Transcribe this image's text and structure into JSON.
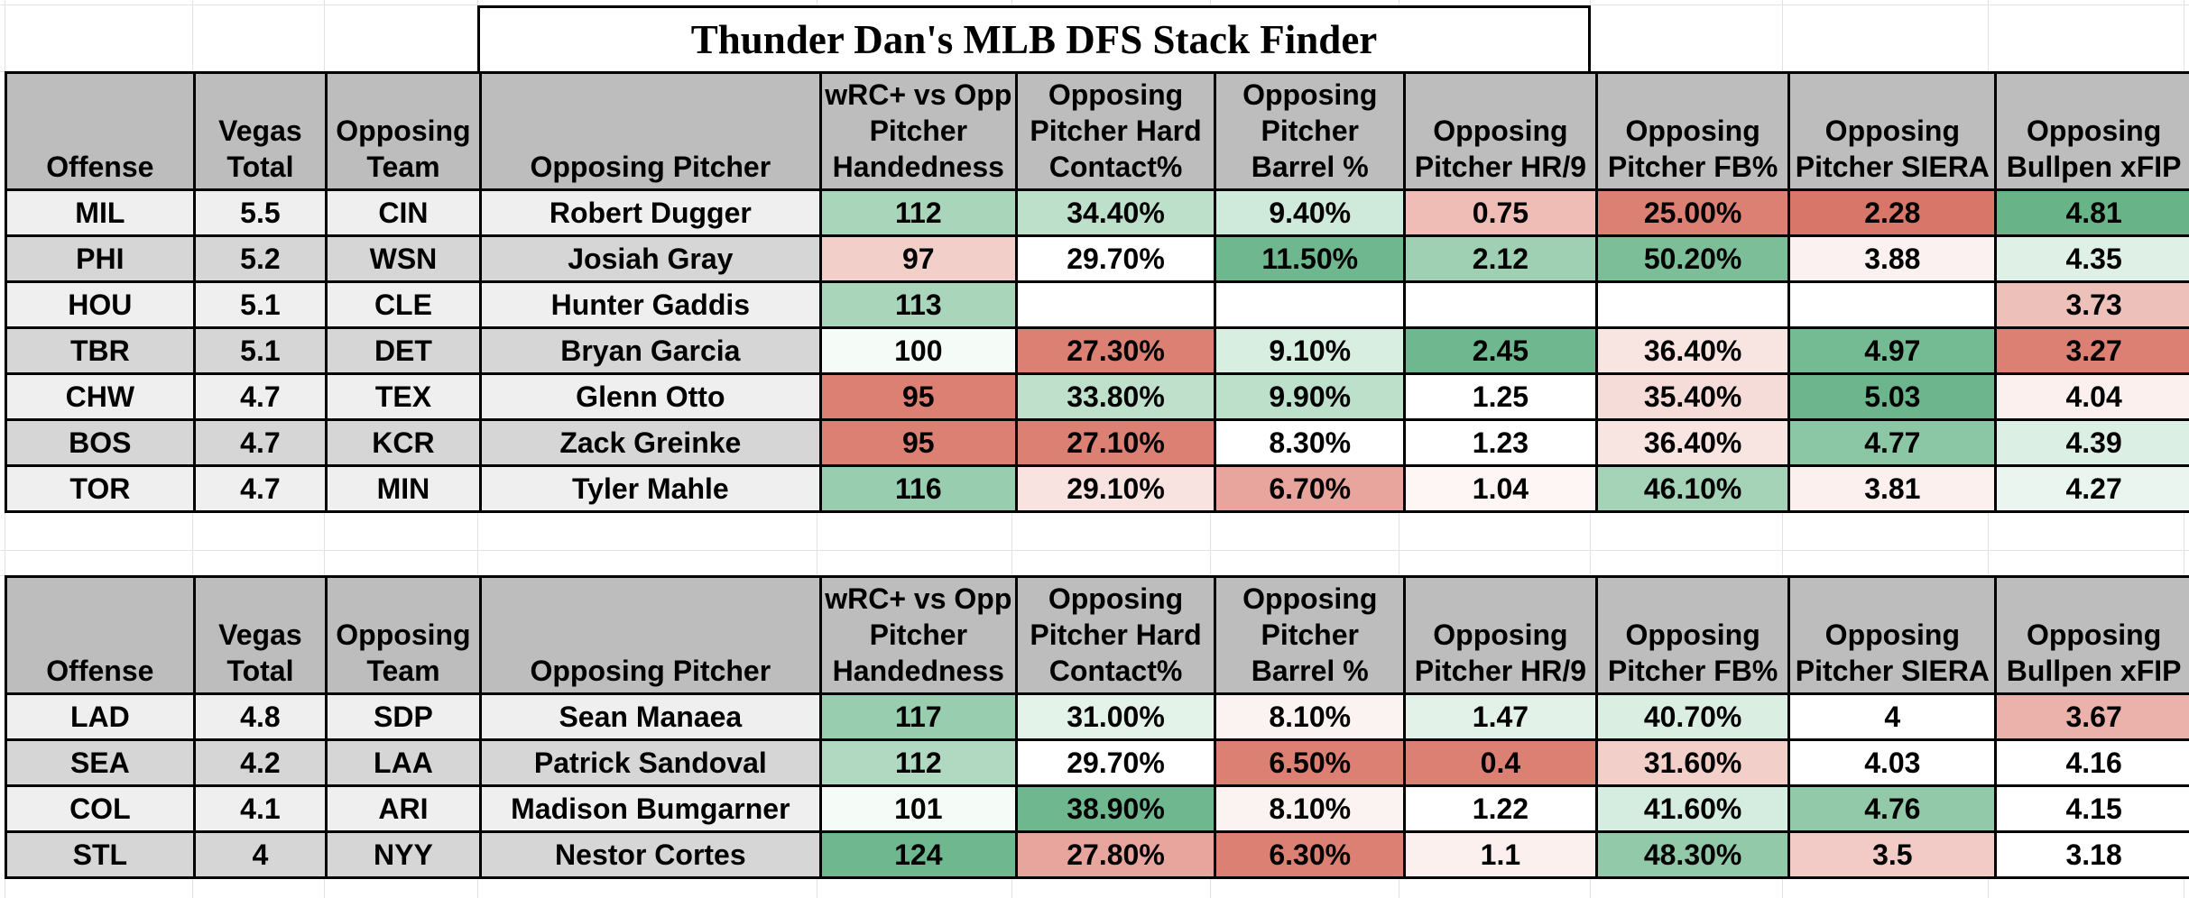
{
  "title": "Thunder Dan's MLB DFS Stack Finder",
  "headers": [
    "Offense",
    "Vegas Total",
    "Opposing Team",
    "Opposing Pitcher",
    "wRC+ vs Opp Pitcher Handedness",
    "Opposing Pitcher Hard Contact%",
    "Opposing Pitcher Barrel %",
    "Opposing Pitcher HR/9",
    "Opposing Pitcher FB%",
    "Opposing Pitcher SIERA",
    "Opposing Bullpen xFIP"
  ],
  "colors": {
    "header_bg": "#bdbdbd",
    "row_light": "#efefef",
    "row_dark": "#d6d6d6",
    "green_strong": "#6fb88f",
    "green_mid": "#9fd0b3",
    "green_light": "#d3ecdd",
    "red_strong": "#dc8074",
    "red_mid": "#e7a59d",
    "red_light": "#f5d8d4",
    "neutral": "#ffffff"
  },
  "table1": [
    {
      "offense": "MIL",
      "vegas": "5.5",
      "opp_team": "CIN",
      "pitcher": "Robert Dugger",
      "wrc": "112",
      "hard": "34.40%",
      "barrel": "9.40%",
      "hr9": "0.75",
      "fb": "25.00%",
      "siera": "2.28",
      "xfip": "4.81",
      "fills": {
        "wrc": "#a9d5bb",
        "hard": "#bde0cb",
        "barrel": "#cfe9da",
        "hr9": "#efbdb6",
        "fb": "#dc8074",
        "siera": "#d9766a",
        "xfip": "#68b387"
      }
    },
    {
      "offense": "PHI",
      "vegas": "5.2",
      "opp_team": "WSN",
      "pitcher": "Josiah Gray",
      "wrc": "97",
      "hard": "29.70%",
      "barrel": "11.50%",
      "hr9": "2.12",
      "fb": "50.20%",
      "siera": "3.88",
      "xfip": "4.35",
      "fills": {
        "wrc": "#f3cfca",
        "hard": "#ffffff",
        "barrel": "#6fb88f",
        "hr9": "#9fd0b3",
        "fb": "#7cbe98",
        "siera": "#fbf1f0",
        "xfip": "#dff1e7"
      }
    },
    {
      "offense": "HOU",
      "vegas": "5.1",
      "opp_team": "CLE",
      "pitcher": "Hunter Gaddis",
      "wrc": "113",
      "hard": "",
      "barrel": "",
      "hr9": "",
      "fb": "",
      "siera": "",
      "xfip": "3.73",
      "fills": {
        "wrc": "#a9d5bb",
        "hard": "#ffffff",
        "barrel": "#ffffff",
        "hr9": "#ffffff",
        "fb": "#ffffff",
        "siera": "#ffffff",
        "xfip": "#eec0ba"
      }
    },
    {
      "offense": "TBR",
      "vegas": "5.1",
      "opp_team": "DET",
      "pitcher": "Bryan Garcia",
      "wrc": "100",
      "hard": "27.30%",
      "barrel": "9.10%",
      "hr9": "2.45",
      "fb": "36.40%",
      "siera": "4.97",
      "xfip": "3.27",
      "fills": {
        "wrc": "#f5fbf7",
        "hard": "#dc8074",
        "barrel": "#d8eee1",
        "hr9": "#6fb88f",
        "fb": "#f8e4e1",
        "siera": "#74ba92",
        "xfip": "#dc8074"
      }
    },
    {
      "offense": "CHW",
      "vegas": "4.7",
      "opp_team": "TEX",
      "pitcher": "Glenn Otto",
      "wrc": "95",
      "hard": "33.80%",
      "barrel": "9.90%",
      "hr9": "1.25",
      "fb": "35.40%",
      "siera": "5.03",
      "xfip": "4.04",
      "fills": {
        "wrc": "#dc8074",
        "hard": "#bfe1cc",
        "barrel": "#bde0cb",
        "hr9": "#ffffff",
        "fb": "#f6dcd8",
        "siera": "#6db68d",
        "xfip": "#fbf0ee"
      }
    },
    {
      "offense": "BOS",
      "vegas": "4.7",
      "opp_team": "KCR",
      "pitcher": "Zack Greinke",
      "wrc": "95",
      "hard": "27.10%",
      "barrel": "8.30%",
      "hr9": "1.23",
      "fb": "36.40%",
      "siera": "4.77",
      "xfip": "4.39",
      "fills": {
        "wrc": "#dc8074",
        "hard": "#dc8074",
        "barrel": "#ffffff",
        "hr9": "#ffffff",
        "fb": "#f8e4e1",
        "siera": "#8cc7a5",
        "xfip": "#dcefe4"
      }
    },
    {
      "offense": "TOR",
      "vegas": "4.7",
      "opp_team": "MIN",
      "pitcher": "Tyler Mahle",
      "wrc": "116",
      "hard": "29.10%",
      "barrel": "6.70%",
      "hr9": "1.04",
      "fb": "46.10%",
      "siera": "3.81",
      "xfip": "4.27",
      "fills": {
        "wrc": "#98cdaf",
        "hard": "#f8e3e0",
        "barrel": "#e7a59d",
        "hr9": "#fdf6f5",
        "fb": "#a5d3b8",
        "siera": "#fbf0ee",
        "xfip": "#e9f5ee"
      }
    }
  ],
  "table2": [
    {
      "offense": "LAD",
      "vegas": "4.8",
      "opp_team": "SDP",
      "pitcher": "Sean Manaea",
      "wrc": "117",
      "hard": "31.00%",
      "barrel": "8.10%",
      "hr9": "1.47",
      "fb": "40.70%",
      "siera": "4",
      "xfip": "3.67",
      "fills": {
        "wrc": "#98cdaf",
        "hard": "#e4f3ea",
        "barrel": "#fbf3f2",
        "hr9": "#e2f2e8",
        "fb": "#dbeee2",
        "siera": "#ffffff",
        "xfip": "#eab2ab"
      }
    },
    {
      "offense": "SEA",
      "vegas": "4.2",
      "opp_team": "LAA",
      "pitcher": "Patrick Sandoval",
      "wrc": "112",
      "hard": "29.70%",
      "barrel": "6.50%",
      "hr9": "0.4",
      "fb": "31.60%",
      "siera": "4.03",
      "xfip": "4.16",
      "fills": {
        "wrc": "#b1d9c2",
        "hard": "#ffffff",
        "barrel": "#dc8074",
        "hr9": "#dc8074",
        "fb": "#f3cfca",
        "siera": "#ffffff",
        "xfip": "#ffffff"
      }
    },
    {
      "offense": "COL",
      "vegas": "4.1",
      "opp_team": "ARI",
      "pitcher": "Madison Bumgarner",
      "wrc": "101",
      "hard": "38.90%",
      "barrel": "8.10%",
      "hr9": "1.22",
      "fb": "41.60%",
      "siera": "4.76",
      "xfip": "4.15",
      "fills": {
        "wrc": "#f5fbf7",
        "hard": "#6fb88f",
        "barrel": "#fbf3f2",
        "hr9": "#ffffff",
        "fb": "#d5ede0",
        "siera": "#92caa9",
        "xfip": "#ffffff"
      }
    },
    {
      "offense": "STL",
      "vegas": "4",
      "opp_team": "NYY",
      "pitcher": "Nestor Cortes",
      "wrc": "124",
      "hard": "27.80%",
      "barrel": "6.30%",
      "hr9": "1.1",
      "fb": "48.30%",
      "siera": "3.5",
      "xfip": "3.18",
      "fills": {
        "wrc": "#6fb88f",
        "hard": "#e7a59d",
        "barrel": "#dc8074",
        "hr9": "#fbf0ee",
        "fb": "#92caa9",
        "siera": "#f2cbc6",
        "xfip": "#ffffff"
      }
    }
  ]
}
